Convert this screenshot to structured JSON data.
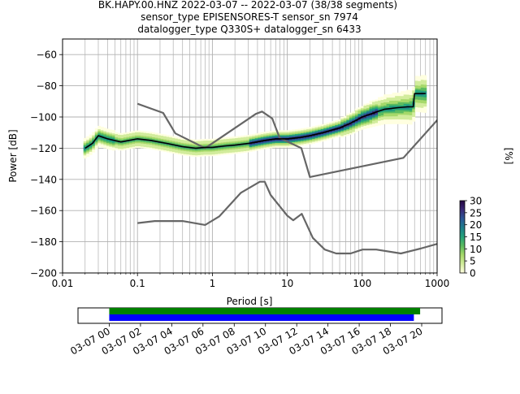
{
  "title_lines": [
    "BK.HAPY.00.HNZ   2022-03-07 -- 2022-03-07  (38/38 segments)",
    "sensor_type EPISENSORES-T sensor_sn 7974",
    "datalogger_type Q330S+ datalogger_sn 6433"
  ],
  "chart_data": [
    {
      "type": "heatmap",
      "xlabel": "Period [s]",
      "ylabel": "Power [dB]",
      "xscale": "log",
      "xlim": [
        0.01,
        1000
      ],
      "ylim": [
        -200,
        -50
      ],
      "xticks": [
        0.01,
        0.1,
        1,
        10,
        100,
        1000
      ],
      "xtick_labels": [
        "0.01",
        "0.1",
        "1",
        "10",
        "100",
        "1000"
      ],
      "yticks": [
        -200,
        -180,
        -160,
        -140,
        -120,
        -100,
        -80,
        -60
      ],
      "ytick_labels": [
        "−200",
        "−180",
        "−160",
        "−140",
        "−120",
        "−100",
        "−80",
        "−60"
      ],
      "grid": true,
      "colorbar": {
        "label": "[%]",
        "ticks": [
          0,
          5,
          10,
          15,
          20,
          25,
          30
        ],
        "tick_labels": [
          "0",
          "5",
          "10",
          "15",
          "20",
          "25",
          "30"
        ],
        "range": [
          0,
          30
        ],
        "colors": [
          "#ffffe0",
          "#d2ec9c",
          "#a6d96a",
          "#5bbb5f",
          "#24a27a",
          "#1e7f8c",
          "#2b5797",
          "#3b2a78",
          "#250642"
        ]
      },
      "series": [
        {
          "role": "median",
          "color": "#000000",
          "x": [
            0.02,
            0.025,
            0.03,
            0.04,
            0.06,
            0.1,
            0.15,
            0.25,
            0.4,
            0.6,
            0.8,
            1,
            1.5,
            2,
            3,
            5,
            7,
            10,
            15,
            20,
            30,
            50,
            70,
            100,
            150,
            200,
            300,
            400,
            480,
            500,
            700
          ],
          "y": [
            -120,
            -117,
            -112,
            -114,
            -116,
            -114,
            -115,
            -117,
            -119,
            -120,
            -119.5,
            -119.5,
            -118.5,
            -118,
            -117,
            -115,
            -114,
            -114,
            -113,
            -112,
            -110,
            -107,
            -104,
            -100,
            -97,
            -95,
            -94,
            -93.5,
            -93.5,
            -85,
            -85
          ]
        },
        {
          "role": "model-upper",
          "color": "#666666",
          "x": [
            0.1,
            0.22,
            0.32,
            0.8,
            3.8,
            4.6,
            6.3,
            7.9,
            15.4,
            20,
            354.8,
            10000
          ],
          "y": [
            -91.5,
            -97.4,
            -110.5,
            -120,
            -98,
            -96.5,
            -101,
            -113.5,
            -120,
            -138.5,
            -126.2,
            -48.5
          ]
        },
        {
          "role": "model-lower",
          "color": "#666666",
          "x": [
            0.1,
            0.17,
            0.4,
            0.8,
            1.24,
            2.4,
            4.3,
            5,
            6,
            10,
            12,
            15.6,
            21.9,
            31.6,
            45,
            70,
            101,
            154,
            328,
            600,
            10000
          ],
          "y": [
            -168,
            -166.7,
            -166.7,
            -169.2,
            -163.7,
            -148.6,
            -141.5,
            -141.5,
            -150,
            -163.3,
            -166.2,
            -162.1,
            -177.5,
            -185,
            -187.5,
            -187.5,
            -185,
            -185,
            -187.5,
            -184.4,
            -168
          ]
        }
      ]
    },
    {
      "type": "timeline",
      "xtick_labels": [
        "03-07 00",
        "03-07 02",
        "03-07 04",
        "03-07 06",
        "03-07 08",
        "03-07 10",
        "03-07 12",
        "03-07 14",
        "03-07 16",
        "03-07 18",
        "03-07 20"
      ],
      "x_range_hours": [
        -2,
        21.3
      ],
      "bars": [
        {
          "color": "#008000",
          "start_hour": 0,
          "end_hour": 19.9
        },
        {
          "color": "#0000ff",
          "start_hour": 0,
          "end_hour": 19.5
        }
      ]
    }
  ]
}
